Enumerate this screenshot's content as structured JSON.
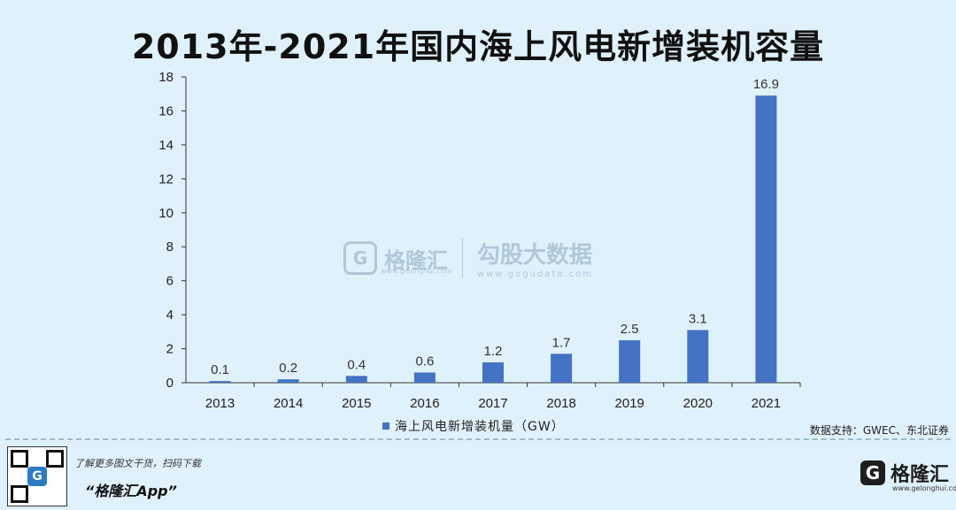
{
  "title": "2013年-2021年国内海上风电新增装机容量",
  "chart_data": {
    "type": "bar",
    "categories": [
      "2013",
      "2014",
      "2015",
      "2016",
      "2017",
      "2018",
      "2019",
      "2020",
      "2021"
    ],
    "series": [
      {
        "name": "海上风电新增装机量（GW）",
        "values": [
          0.1,
          0.2,
          0.4,
          0.6,
          1.2,
          1.7,
          2.5,
          3.1,
          16.9
        ]
      }
    ],
    "value_labels": [
      "0.1",
      "0.2",
      "0.4",
      "0.6",
      "1.2",
      "1.7",
      "2.5",
      "3.1",
      "16.9"
    ],
    "ylim": [
      0,
      18
    ],
    "yticks": [
      "0",
      "2",
      "4",
      "6",
      "8",
      "10",
      "12",
      "14",
      "16",
      "18"
    ],
    "xlabel": "",
    "ylabel": "",
    "grid": false,
    "legend_position": "bottom",
    "bar_color": "#4472c4"
  },
  "source": "数据支持：GWEC、东北证券",
  "watermark": {
    "brand": "格隆汇",
    "brand_url": "www.gelonghui.com",
    "name": "勾股大数据",
    "url": "www.gogudata.com"
  },
  "footer": {
    "promo": "了解更多图文干货，扫码下载",
    "app_name": "“格隆汇App”",
    "logo_text": "格隆汇",
    "logo_sub": "www.gelonghui.com"
  }
}
